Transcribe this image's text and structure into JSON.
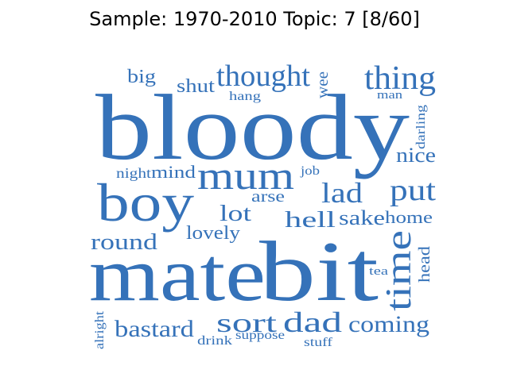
{
  "title": "Sample: 1970-2010 Topic: 7 [8/60]",
  "colors": {
    "word": "#3572b9"
  },
  "words": [
    {
      "text": "bloody"
    },
    {
      "text": "mate"
    },
    {
      "text": "bit"
    },
    {
      "text": "boy"
    },
    {
      "text": "mum"
    },
    {
      "text": "time"
    },
    {
      "text": "thing"
    },
    {
      "text": "thought"
    },
    {
      "text": "put"
    },
    {
      "text": "lad"
    },
    {
      "text": "dad"
    },
    {
      "text": "sort"
    },
    {
      "text": "coming"
    },
    {
      "text": "bastard"
    },
    {
      "text": "round"
    },
    {
      "text": "hell"
    },
    {
      "text": "lot"
    },
    {
      "text": "sake"
    },
    {
      "text": "home"
    },
    {
      "text": "lovely"
    },
    {
      "text": "nice"
    },
    {
      "text": "big"
    },
    {
      "text": "shut"
    },
    {
      "text": "mind"
    },
    {
      "text": "arse"
    },
    {
      "text": "wee"
    },
    {
      "text": "head"
    },
    {
      "text": "night"
    },
    {
      "text": "hang"
    },
    {
      "text": "man"
    },
    {
      "text": "darling"
    },
    {
      "text": "job"
    },
    {
      "text": "tea"
    },
    {
      "text": "alright"
    },
    {
      "text": "drink"
    },
    {
      "text": "suppose"
    },
    {
      "text": "stuff"
    }
  ]
}
